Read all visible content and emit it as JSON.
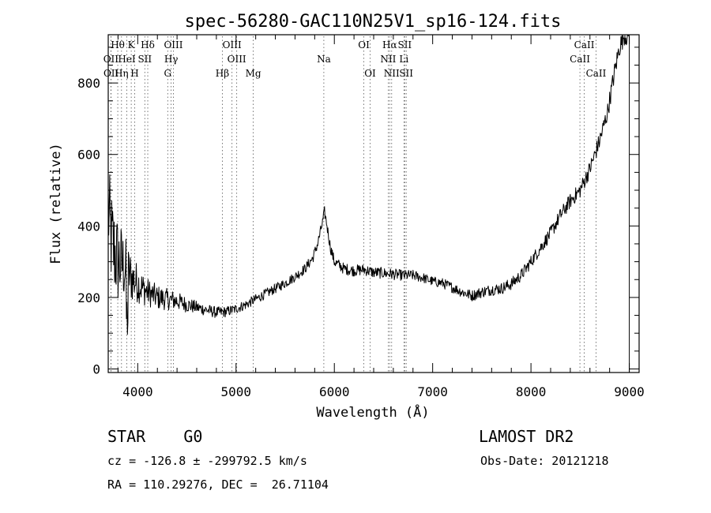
{
  "chart_data": {
    "type": "line",
    "title": "spec-56280-GAC110N25V1_sp16-124.fits",
    "xlabel": "Wavelength (Å)",
    "ylabel": "Flux (relative)",
    "xlim": [
      3700,
      9100
    ],
    "ylim": [
      -10,
      935
    ],
    "x_ticks": [
      {
        "v": 4000,
        "label": "4000"
      },
      {
        "v": 5000,
        "label": "5000"
      },
      {
        "v": 6000,
        "label": "6000"
      },
      {
        "v": 7000,
        "label": "7000"
      },
      {
        "v": 8000,
        "label": "8000"
      },
      {
        "v": 9000,
        "label": "9000"
      }
    ],
    "y_ticks": [
      {
        "v": 0,
        "label": "0"
      },
      {
        "v": 200,
        "label": "200"
      },
      {
        "v": 400,
        "label": "400"
      },
      {
        "v": 600,
        "label": "600"
      },
      {
        "v": 800,
        "label": "800"
      }
    ],
    "spectrum_envelope": [
      [
        3700,
        450
      ],
      [
        3720,
        380
      ],
      [
        3760,
        330
      ],
      [
        3800,
        300
      ],
      [
        3850,
        290
      ],
      [
        3900,
        270
      ],
      [
        3950,
        250
      ],
      [
        4000,
        240
      ],
      [
        4050,
        225
      ],
      [
        4100,
        215
      ],
      [
        4200,
        200
      ],
      [
        4300,
        195
      ],
      [
        4400,
        190
      ],
      [
        4500,
        180
      ],
      [
        4600,
        172
      ],
      [
        4700,
        165
      ],
      [
        4800,
        158
      ],
      [
        4900,
        160
      ],
      [
        5000,
        168
      ],
      [
        5100,
        180
      ],
      [
        5200,
        195
      ],
      [
        5300,
        210
      ],
      [
        5400,
        225
      ],
      [
        5500,
        240
      ],
      [
        5600,
        258
      ],
      [
        5700,
        280
      ],
      [
        5780,
        310
      ],
      [
        5830,
        350
      ],
      [
        5880,
        410
      ],
      [
        5900,
        440
      ],
      [
        5920,
        410
      ],
      [
        5960,
        340
      ],
      [
        6000,
        300
      ],
      [
        6100,
        280
      ],
      [
        6200,
        275
      ],
      [
        6300,
        278
      ],
      [
        6400,
        270
      ],
      [
        6500,
        268
      ],
      [
        6600,
        265
      ],
      [
        6700,
        262
      ],
      [
        6800,
        262
      ],
      [
        6900,
        255
      ],
      [
        7000,
        245
      ],
      [
        7100,
        240
      ],
      [
        7200,
        228
      ],
      [
        7300,
        215
      ],
      [
        7400,
        205
      ],
      [
        7500,
        215
      ],
      [
        7600,
        222
      ],
      [
        7700,
        225
      ],
      [
        7800,
        238
      ],
      [
        7900,
        262
      ],
      [
        8000,
        300
      ],
      [
        8100,
        340
      ],
      [
        8200,
        380
      ],
      [
        8300,
        430
      ],
      [
        8400,
        470
      ],
      [
        8500,
        500
      ],
      [
        8600,
        560
      ],
      [
        8700,
        640
      ],
      [
        8780,
        720
      ],
      [
        8850,
        830
      ],
      [
        8900,
        900
      ],
      [
        8950,
        935
      ],
      [
        8990,
        930
      ]
    ],
    "noise_amplitude": [
      [
        3700,
        150
      ],
      [
        3800,
        130
      ],
      [
        3900,
        80
      ],
      [
        4000,
        55
      ],
      [
        4100,
        40
      ],
      [
        4300,
        30
      ],
      [
        4600,
        18
      ],
      [
        5000,
        14
      ],
      [
        5600,
        14
      ],
      [
        6000,
        16
      ],
      [
        6500,
        16
      ],
      [
        7000,
        14
      ],
      [
        7500,
        16
      ],
      [
        8000,
        18
      ],
      [
        8500,
        22
      ],
      [
        9000,
        30
      ]
    ],
    "line_markers": [
      {
        "label": "Hθ",
        "wave": 3797,
        "row": 0
      },
      {
        "label": "K",
        "wave": 3934,
        "row": 0
      },
      {
        "label": "Hδ",
        "wave": 4102,
        "row": 0
      },
      {
        "label": "OIII",
        "wave": 4363,
        "row": 0
      },
      {
        "label": "OIII",
        "wave": 4959,
        "row": 0
      },
      {
        "label": "OI",
        "wave": 6300,
        "row": 0
      },
      {
        "label": "Hα",
        "wave": 6563,
        "row": 0
      },
      {
        "label": "SII",
        "wave": 6716,
        "row": 0
      },
      {
        "label": "CaII",
        "wave": 8542,
        "row": 0
      },
      {
        "label": "OII",
        "wave": 3727,
        "row": 1
      },
      {
        "label": "HeI",
        "wave": 3889,
        "row": 1
      },
      {
        "label": "SII",
        "wave": 4072,
        "row": 1
      },
      {
        "label": "Hγ",
        "wave": 4340,
        "row": 1
      },
      {
        "label": "OIII",
        "wave": 5007,
        "row": 1
      },
      {
        "label": "Na",
        "wave": 5893,
        "row": 1
      },
      {
        "label": "NII",
        "wave": 6548,
        "row": 1
      },
      {
        "label": "Li",
        "wave": 6708,
        "row": 1
      },
      {
        "label": "CaII",
        "wave": 8498,
        "row": 1
      },
      {
        "label": "OII",
        "wave": 3729,
        "row": 2
      },
      {
        "label": "Hη",
        "wave": 3835,
        "row": 2
      },
      {
        "label": "H",
        "wave": 3969,
        "row": 2
      },
      {
        "label": "G",
        "wave": 4305,
        "row": 2
      },
      {
        "label": "Hβ",
        "wave": 4861,
        "row": 2
      },
      {
        "label": "Mg",
        "wave": 5175,
        "row": 2
      },
      {
        "label": "OI",
        "wave": 6364,
        "row": 2
      },
      {
        "label": "NII",
        "wave": 6583,
        "row": 2
      },
      {
        "label": "SII",
        "wave": 6731,
        "row": 2
      },
      {
        "label": "CaII",
        "wave": 8662,
        "row": 2
      }
    ]
  },
  "info": {
    "object": "STAR    G0",
    "survey": "LAMOST DR2",
    "redshift": "cz = -126.8 ± -299792.5 km/s",
    "obsdate": "Obs-Date: 20121218",
    "coords": "RA = 110.29276, DEC =  26.71104"
  }
}
